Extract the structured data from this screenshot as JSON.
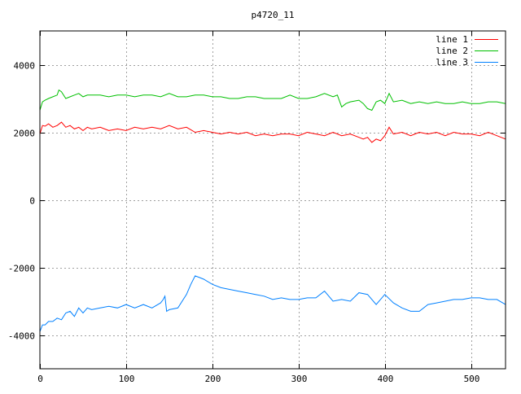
{
  "chart_data": {
    "type": "line",
    "title": "p4720_11",
    "xlabel": "",
    "ylabel": "",
    "xlim": [
      0,
      540
    ],
    "ylim": [
      -5000,
      5000
    ],
    "xticks": [
      0,
      100,
      200,
      300,
      400,
      500
    ],
    "yticks": [
      -4000,
      -2000,
      0,
      2000,
      4000
    ],
    "grid": true,
    "legend_position": "top-right",
    "series": [
      {
        "name": "line 1",
        "color": "#ff0000",
        "x": [
          0,
          3,
          6,
          10,
          15,
          20,
          25,
          30,
          35,
          40,
          45,
          50,
          55,
          60,
          70,
          80,
          90,
          100,
          110,
          120,
          130,
          140,
          150,
          160,
          170,
          180,
          190,
          200,
          210,
          220,
          230,
          240,
          250,
          260,
          270,
          280,
          290,
          300,
          310,
          320,
          330,
          340,
          350,
          360,
          370,
          375,
          380,
          385,
          390,
          395,
          400,
          405,
          410,
          420,
          430,
          440,
          450,
          460,
          470,
          480,
          490,
          500,
          510,
          520,
          530,
          540
        ],
        "y": [
          1950,
          2200,
          2180,
          2250,
          2150,
          2200,
          2300,
          2150,
          2200,
          2100,
          2150,
          2050,
          2150,
          2100,
          2150,
          2050,
          2100,
          2050,
          2150,
          2100,
          2150,
          2100,
          2200,
          2100,
          2150,
          2000,
          2050,
          2000,
          1950,
          2000,
          1950,
          2000,
          1900,
          1950,
          1900,
          1950,
          1950,
          1900,
          2000,
          1950,
          1900,
          2000,
          1900,
          1950,
          1850,
          1800,
          1850,
          1700,
          1800,
          1750,
          1900,
          2150,
          1950,
          2000,
          1900,
          2000,
          1950,
          2000,
          1900,
          2000,
          1950,
          1950,
          1900,
          2000,
          1900,
          1800
        ]
      },
      {
        "name": "line 2",
        "color": "#00c000",
        "x": [
          0,
          3,
          6,
          10,
          15,
          20,
          22,
          25,
          30,
          35,
          40,
          45,
          50,
          55,
          60,
          70,
          80,
          90,
          100,
          110,
          120,
          130,
          140,
          150,
          160,
          170,
          180,
          190,
          200,
          210,
          220,
          230,
          240,
          250,
          260,
          270,
          280,
          290,
          300,
          310,
          320,
          330,
          340,
          345,
          350,
          355,
          360,
          370,
          375,
          380,
          385,
          390,
          395,
          400,
          405,
          410,
          420,
          430,
          440,
          450,
          460,
          470,
          480,
          490,
          500,
          510,
          520,
          530,
          540
        ],
        "y": [
          2650,
          2900,
          2950,
          3000,
          3050,
          3100,
          3250,
          3200,
          3000,
          3050,
          3100,
          3150,
          3050,
          3100,
          3100,
          3100,
          3050,
          3100,
          3100,
          3050,
          3100,
          3100,
          3050,
          3150,
          3050,
          3050,
          3100,
          3100,
          3050,
          3050,
          3000,
          3000,
          3050,
          3050,
          3000,
          3000,
          3000,
          3100,
          3000,
          3000,
          3050,
          3150,
          3050,
          3100,
          2750,
          2850,
          2900,
          2950,
          2850,
          2700,
          2650,
          2900,
          2950,
          2850,
          3150,
          2900,
          2950,
          2850,
          2900,
          2850,
          2900,
          2850,
          2850,
          2900,
          2850,
          2850,
          2900,
          2900,
          2850
        ]
      },
      {
        "name": "line 3",
        "color": "#0080ff",
        "x": [
          0,
          3,
          6,
          10,
          15,
          20,
          25,
          30,
          35,
          40,
          45,
          50,
          55,
          60,
          70,
          80,
          90,
          100,
          110,
          120,
          130,
          140,
          143,
          145,
          147,
          150,
          160,
          170,
          175,
          180,
          185,
          190,
          200,
          210,
          220,
          230,
          240,
          250,
          260,
          270,
          280,
          290,
          300,
          310,
          320,
          330,
          340,
          350,
          360,
          370,
          380,
          390,
          400,
          410,
          420,
          430,
          440,
          450,
          460,
          470,
          480,
          490,
          500,
          510,
          520,
          530,
          540
        ],
        "y": [
          -3900,
          -3700,
          -3700,
          -3600,
          -3600,
          -3500,
          -3550,
          -3350,
          -3300,
          -3450,
          -3200,
          -3350,
          -3200,
          -3250,
          -3200,
          -3150,
          -3200,
          -3100,
          -3200,
          -3100,
          -3200,
          -3050,
          -2950,
          -2850,
          -3300,
          -3250,
          -3200,
          -2800,
          -2500,
          -2250,
          -2300,
          -2350,
          -2500,
          -2600,
          -2650,
          -2700,
          -2750,
          -2800,
          -2850,
          -2950,
          -2900,
          -2950,
          -2950,
          -2900,
          -2900,
          -2700,
          -3000,
          -2950,
          -3000,
          -2750,
          -2800,
          -3100,
          -2800,
          -3050,
          -3200,
          -3300,
          -3300,
          -3100,
          -3050,
          -3000,
          -2950,
          -2950,
          -2900,
          -2900,
          -2950,
          -2950,
          -3100
        ]
      }
    ]
  }
}
